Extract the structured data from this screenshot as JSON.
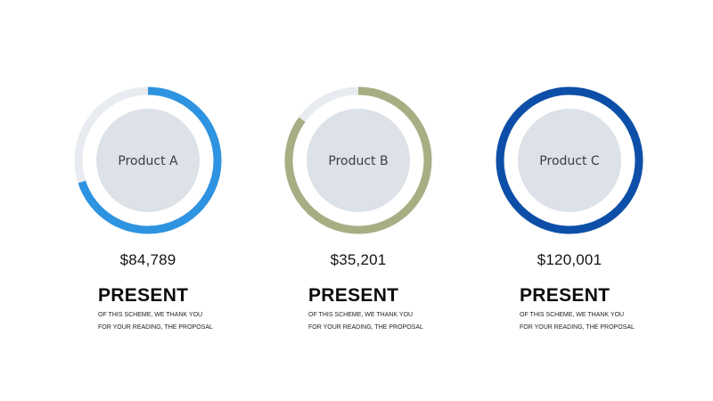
{
  "chart_data": {
    "type": "pie",
    "variant": "donut-progress",
    "track_color": "#e8ebef",
    "center_color": "#dde1e8",
    "items": [
      {
        "label": "Product A",
        "value_text": "$84,789",
        "progress": 0.7,
        "color": "#2e93e0"
      },
      {
        "label": "Product B",
        "value_text": "$35,201",
        "progress": 0.85,
        "color": "#a7ae84"
      },
      {
        "label": "Product C",
        "value_text": "$120,001",
        "progress": 1.0,
        "color": "#0d4fa8"
      }
    ]
  },
  "captions": [
    {
      "heading": "PRESENT",
      "line1": "OF THIS SCHEME, WE THANK YOU",
      "line2": "FOR YOUR READING, THE PROPOSAL"
    },
    {
      "heading": "PRESENT",
      "line1": "OF THIS SCHEME, WE THANK YOU",
      "line2": "FOR YOUR READING, THE PROPOSAL"
    },
    {
      "heading": "PRESENT",
      "line1": "OF THIS SCHEME, WE THANK YOU",
      "line2": "FOR YOUR READING, THE PROPOSAL"
    }
  ]
}
